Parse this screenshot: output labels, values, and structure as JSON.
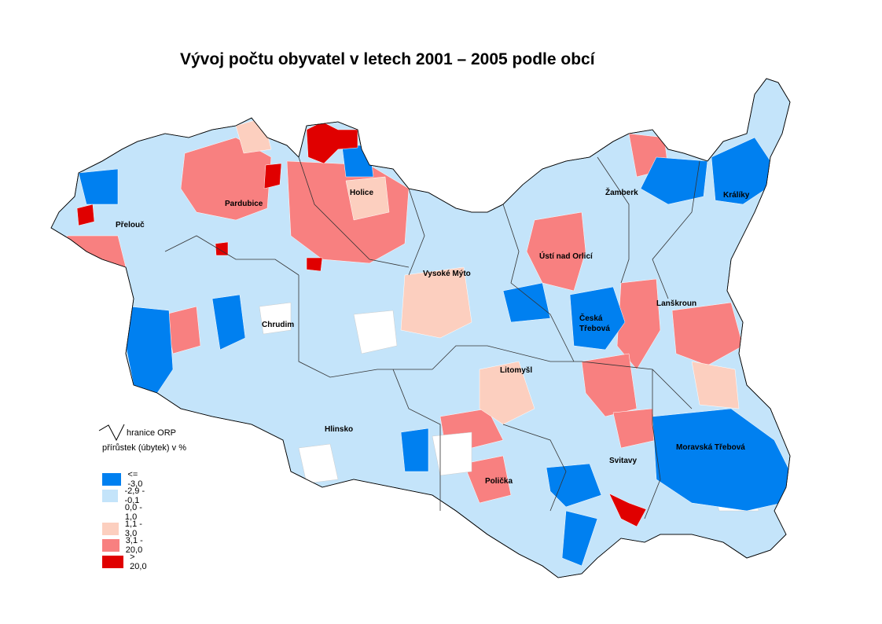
{
  "title": "Vývoj počtu obyvatel v letech 2001 – 2005 podle obcí",
  "legend": {
    "boundary_label": "hranice ORP",
    "heading": "přírůstek (úbytek) v %",
    "classes": [
      {
        "label": "<=  -3,0",
        "color": "#0080f0"
      },
      {
        "label": "-2,9 - -0,1",
        "color": "#c4e4fa"
      },
      {
        "label": "0,0 - 1,0",
        "color": "#ffffff"
      },
      {
        "label": "1,1 - 3,0",
        "color": "#fccfbf"
      },
      {
        "label": "3,1 - 20,0",
        "color": "#f88080"
      },
      {
        "label": "> 20,0",
        "color": "#e00000"
      }
    ]
  },
  "map": {
    "orp_labels": [
      "Přelouč",
      "Pardubice",
      "Holice",
      "Žamberk",
      "Králíky",
      "Ústí nad Orlicí",
      "Vysoké Mýto",
      "Lanškroun",
      "Chrudim",
      "Česká",
      "Třebová",
      "Litomyšl",
      "Hlinsko",
      "Svitavy",
      "Moravská Třebová",
      "Polička"
    ]
  }
}
